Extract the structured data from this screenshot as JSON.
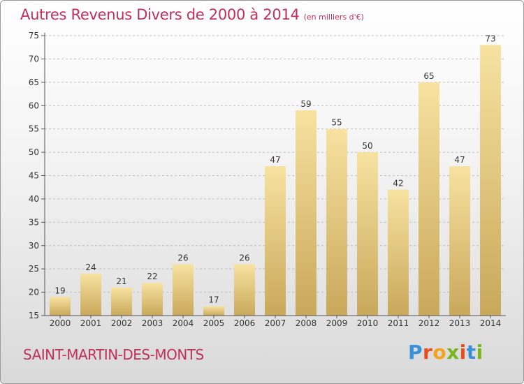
{
  "title": "Autres Revenus Divers de 2000 à 2014",
  "subtitle": "(en milliers d'€)",
  "commune": "SAINT-MARTIN-DES-MONTS",
  "logo": {
    "letters": [
      "P",
      "r",
      "o",
      "x",
      "i",
      "t",
      "i"
    ],
    "colors": [
      "#3a8fd9",
      "#e84e1b",
      "#f3a21b",
      "#7ab51d",
      "#e84e1b",
      "#3a8fd9",
      "#7ab51d"
    ]
  },
  "colors": {
    "bar_light": "#f7e2a0",
    "bar_dark": "#c9a85a",
    "grid": "#bdbdbd"
  },
  "chart_data": {
    "type": "bar",
    "categories": [
      "2000",
      "2001",
      "2002",
      "2003",
      "2004",
      "2005",
      "2006",
      "2007",
      "2008",
      "2009",
      "2010",
      "2011",
      "2012",
      "2013",
      "2014"
    ],
    "values": [
      19,
      24,
      21,
      22,
      26,
      17,
      26,
      47,
      59,
      55,
      50,
      42,
      65,
      47,
      73
    ],
    "title": "Autres Revenus Divers de 2000 à 2014",
    "xlabel": "",
    "ylabel": "",
    "ylim": [
      15,
      75
    ],
    "yticks": [
      15,
      20,
      25,
      30,
      35,
      40,
      45,
      50,
      55,
      60,
      65,
      70,
      75
    ],
    "grid": true,
    "legend": "none"
  }
}
